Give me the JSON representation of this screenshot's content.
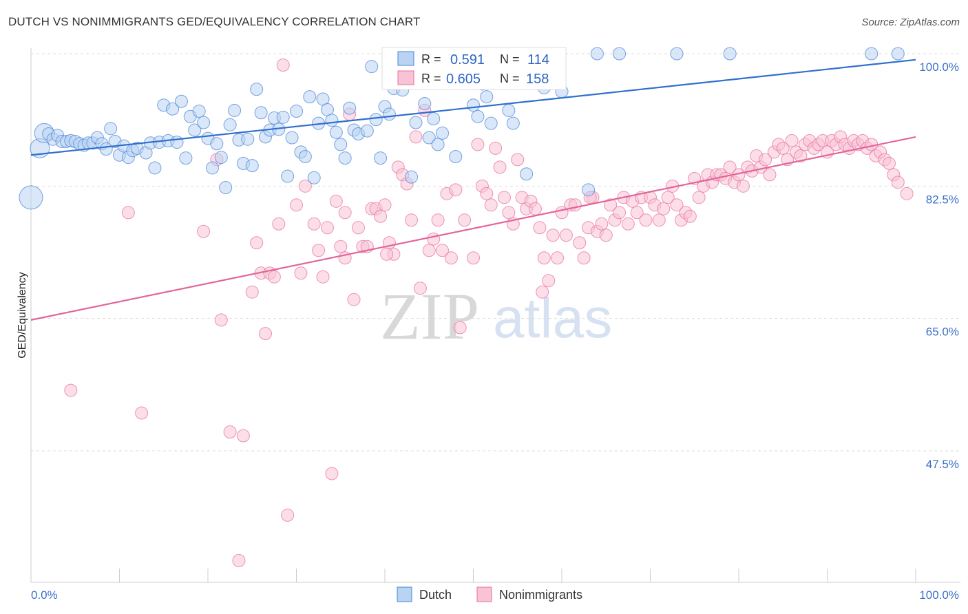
{
  "title": "DUTCH VS NONIMMIGRANTS GED/EQUIVALENCY CORRELATION CHART",
  "source": "Source: ZipAtlas.com",
  "watermark": {
    "part1": "ZIP",
    "part2": "atlas"
  },
  "colors": {
    "dutch": "#4a86d8",
    "dutch_fill": "#b9d3f3",
    "nonimmigrants": "#e8729b",
    "nonimmigrants_fill": "#f7c3d5",
    "tick_label": "#3a6fc9",
    "grid": "#dddddd"
  },
  "stats": {
    "dutch": {
      "r_label": "R =",
      "r": "0.591",
      "n_label": "N =",
      "n": "114"
    },
    "nonimmigrants": {
      "r_label": "R =",
      "r": "0.605",
      "n_label": "N =",
      "n": "158"
    }
  },
  "chart_data": {
    "type": "scatter",
    "title": "DUTCH VS NONIMMIGRANTS GED/EQUIVALENCY CORRELATION CHART",
    "xlabel": "",
    "ylabel": "GED/Equivalency",
    "xlim": [
      0,
      100
    ],
    "ylim": [
      30,
      102
    ],
    "x_tick_labels": [
      "0.0%",
      "100.0%"
    ],
    "y_ticks": [
      47.5,
      65.0,
      82.5,
      100.0
    ],
    "y_tick_labels": [
      "47.5%",
      "65.0%",
      "82.5%",
      "100.0%"
    ],
    "grid": "horizontal dashed",
    "legend_position": "bottom",
    "series": [
      {
        "name": "Dutch",
        "color": "#4a86d8",
        "trend": {
          "x": [
            0,
            100
          ],
          "y": [
            86.6,
            99.2
          ]
        },
        "points": [
          [
            0,
            81
          ],
          [
            1,
            87.5
          ],
          [
            1.5,
            89.5
          ],
          [
            2,
            89.4
          ],
          [
            2.5,
            88.7
          ],
          [
            3,
            89.2
          ],
          [
            3.5,
            88.4
          ],
          [
            4,
            88.4
          ],
          [
            4.5,
            88.5
          ],
          [
            5,
            88.4
          ],
          [
            5.5,
            88.1
          ],
          [
            6,
            87.9
          ],
          [
            6.5,
            88.2
          ],
          [
            7,
            88.2
          ],
          [
            7.5,
            88.9
          ],
          [
            8,
            88.1
          ],
          [
            8.5,
            87.4
          ],
          [
            9,
            90.1
          ],
          [
            9.5,
            88.4
          ],
          [
            10,
            86.6
          ],
          [
            10.5,
            87.8
          ],
          [
            11,
            86.3
          ],
          [
            11.5,
            87.2
          ],
          [
            12,
            87.5
          ],
          [
            13,
            86.9
          ],
          [
            13.5,
            88.2
          ],
          [
            14,
            84.9
          ],
          [
            14.5,
            88.3
          ],
          [
            15,
            93.2
          ],
          [
            15.5,
            88.5
          ],
          [
            16,
            92.7
          ],
          [
            16.5,
            88.3
          ],
          [
            17,
            93.7
          ],
          [
            17.5,
            86.2
          ],
          [
            18,
            91.7
          ],
          [
            18.5,
            89.9
          ],
          [
            19,
            92.4
          ],
          [
            19.5,
            90.9
          ],
          [
            20,
            88.8
          ],
          [
            20.5,
            84.9
          ],
          [
            21,
            88.1
          ],
          [
            21.5,
            86.3
          ],
          [
            22,
            82.3
          ],
          [
            22.5,
            90.6
          ],
          [
            23,
            92.5
          ],
          [
            23.5,
            88.6
          ],
          [
            24,
            85.5
          ],
          [
            24.5,
            88.7
          ],
          [
            25,
            85.2
          ],
          [
            25.5,
            95.3
          ],
          [
            26,
            92.2
          ],
          [
            26.5,
            89.0
          ],
          [
            27,
            89.9
          ],
          [
            27.5,
            91.5
          ],
          [
            28,
            90.0
          ],
          [
            28.5,
            91.6
          ],
          [
            29,
            83.8
          ],
          [
            29.5,
            88.9
          ],
          [
            30,
            92.4
          ],
          [
            30.5,
            87.0
          ],
          [
            31,
            86.4
          ],
          [
            31.5,
            94.3
          ],
          [
            32,
            83.6
          ],
          [
            32.5,
            90.8
          ],
          [
            33,
            94.0
          ],
          [
            33.5,
            92.6
          ],
          [
            34,
            91.2
          ],
          [
            34.5,
            89.6
          ],
          [
            35,
            88.0
          ],
          [
            35.5,
            86.2
          ],
          [
            36,
            92.8
          ],
          [
            36.5,
            89.9
          ],
          [
            37,
            89.4
          ],
          [
            38,
            89.8
          ],
          [
            38.5,
            98.3
          ],
          [
            39,
            91.3
          ],
          [
            39.5,
            86.2
          ],
          [
            40,
            93.0
          ],
          [
            40.5,
            92.0
          ],
          [
            41,
            95.4
          ],
          [
            42,
            95.2
          ],
          [
            43,
            83.7
          ],
          [
            43.5,
            90.9
          ],
          [
            44,
            97.5
          ],
          [
            44.5,
            93.4
          ],
          [
            45,
            88.9
          ],
          [
            45.5,
            91.4
          ],
          [
            46,
            88.0
          ],
          [
            46.5,
            89.5
          ],
          [
            47,
            97.5
          ],
          [
            48,
            86.4
          ],
          [
            49,
            96.3
          ],
          [
            50,
            93.2
          ],
          [
            50.5,
            91.7
          ],
          [
            51,
            96.0
          ],
          [
            51.5,
            94.3
          ],
          [
            52,
            90.8
          ],
          [
            53,
            97.5
          ],
          [
            54,
            92.5
          ],
          [
            54.5,
            90.8
          ],
          [
            55,
            97.8
          ],
          [
            56,
            84.1
          ],
          [
            58,
            95.5
          ],
          [
            60,
            95.0
          ],
          [
            63,
            82.0
          ],
          [
            64,
            100.0
          ],
          [
            66.5,
            100.0
          ],
          [
            73,
            100.0
          ],
          [
            79,
            100.0
          ],
          [
            95,
            100.0
          ],
          [
            98,
            100.0
          ]
        ]
      },
      {
        "name": "Nonimmigrants",
        "color": "#e8729b",
        "trend": {
          "x": [
            0,
            100
          ],
          "y": [
            64.8,
            89.0
          ]
        },
        "points": [
          [
            4.5,
            55.5
          ],
          [
            11,
            79.0
          ],
          [
            12.5,
            52.5
          ],
          [
            19.5,
            76.5
          ],
          [
            21,
            86.0
          ],
          [
            21.5,
            64.8
          ],
          [
            22.5,
            50.0
          ],
          [
            23.5,
            33.0
          ],
          [
            24,
            49.5
          ],
          [
            25,
            68.5
          ],
          [
            25.5,
            75.0
          ],
          [
            26,
            71.0
          ],
          [
            26.5,
            63.0
          ],
          [
            27,
            71.0
          ],
          [
            27.5,
            70.5
          ],
          [
            28,
            77.5
          ],
          [
            28.5,
            98.5
          ],
          [
            29,
            39.0
          ],
          [
            30,
            80.0
          ],
          [
            30.5,
            71.0
          ],
          [
            31,
            82.5
          ],
          [
            32,
            77.5
          ],
          [
            32.5,
            74.0
          ],
          [
            33,
            70.5
          ],
          [
            33.5,
            77.0
          ],
          [
            34,
            44.5
          ],
          [
            34.5,
            80.5
          ],
          [
            35,
            74.5
          ],
          [
            35.5,
            73.0
          ],
          [
            36,
            92.0
          ],
          [
            36.5,
            67.5
          ],
          [
            37,
            77.0
          ],
          [
            37.5,
            74.5
          ],
          [
            38,
            74.5
          ],
          [
            38.5,
            79.5
          ],
          [
            39,
            79.5
          ],
          [
            39.5,
            78.5
          ],
          [
            40,
            80.0
          ],
          [
            40.5,
            75.0
          ],
          [
            41,
            73.5
          ],
          [
            41.5,
            85.0
          ],
          [
            42,
            84.0
          ],
          [
            42.5,
            82.8
          ],
          [
            43,
            78.0
          ],
          [
            43.5,
            89.0
          ],
          [
            44,
            69.0
          ],
          [
            44.5,
            92.5
          ],
          [
            45,
            74.0
          ],
          [
            45.5,
            75.5
          ],
          [
            46,
            78.0
          ],
          [
            46.5,
            74.0
          ],
          [
            47,
            81.5
          ],
          [
            47.5,
            73.0
          ],
          [
            48,
            82.0
          ],
          [
            48.5,
            63.8
          ],
          [
            49,
            78.0
          ],
          [
            50,
            73.0
          ],
          [
            50.5,
            88.0
          ],
          [
            51,
            82.5
          ],
          [
            51.5,
            81.5
          ],
          [
            52,
            80.0
          ],
          [
            52.5,
            87.5
          ],
          [
            53,
            85.0
          ],
          [
            53.5,
            81.0
          ],
          [
            54,
            79.0
          ],
          [
            54.5,
            77.5
          ],
          [
            55,
            86.0
          ],
          [
            55.5,
            81.0
          ],
          [
            56,
            79.5
          ],
          [
            56.5,
            80.5
          ],
          [
            57,
            79.5
          ],
          [
            57.5,
            77.0
          ],
          [
            58,
            73.0
          ],
          [
            58.5,
            70.0
          ],
          [
            59,
            76.0
          ],
          [
            59.5,
            73.0
          ],
          [
            60,
            79.0
          ],
          [
            60.5,
            76.0
          ],
          [
            61,
            80.0
          ],
          [
            61.5,
            80.0
          ],
          [
            62,
            75.0
          ],
          [
            62.5,
            73.0
          ],
          [
            63,
            77.0
          ],
          [
            63.5,
            81.0
          ],
          [
            64,
            76.5
          ],
          [
            64.5,
            77.5
          ],
          [
            65,
            76.0
          ],
          [
            65.5,
            80.0
          ],
          [
            66,
            78.0
          ],
          [
            66.5,
            79.0
          ],
          [
            67,
            81.0
          ],
          [
            67.5,
            77.5
          ],
          [
            68,
            80.5
          ],
          [
            68.5,
            79.0
          ],
          [
            69,
            81.0
          ],
          [
            69.5,
            78.0
          ],
          [
            70,
            81.0
          ],
          [
            70.5,
            80.0
          ],
          [
            71,
            78.0
          ],
          [
            71.5,
            79.5
          ],
          [
            72,
            81.0
          ],
          [
            72.5,
            82.5
          ],
          [
            73,
            80.0
          ],
          [
            73.5,
            78.0
          ],
          [
            74,
            79.0
          ],
          [
            74.5,
            78.5
          ],
          [
            75,
            83.5
          ],
          [
            75.5,
            81.0
          ],
          [
            76,
            82.5
          ],
          [
            76.5,
            84.0
          ],
          [
            77,
            83.0
          ],
          [
            77.5,
            84.0
          ],
          [
            78,
            84.0
          ],
          [
            78.5,
            83.5
          ],
          [
            79,
            85.0
          ],
          [
            79.5,
            83.0
          ],
          [
            80,
            84.0
          ],
          [
            80.5,
            82.5
          ],
          [
            81,
            85.0
          ],
          [
            81.5,
            84.5
          ],
          [
            82,
            86.5
          ],
          [
            82.5,
            85.0
          ],
          [
            83,
            86.0
          ],
          [
            83.5,
            84.0
          ],
          [
            84,
            87.0
          ],
          [
            84.5,
            88.0
          ],
          [
            85,
            87.5
          ],
          [
            85.5,
            86.0
          ],
          [
            86,
            88.5
          ],
          [
            86.5,
            87.0
          ],
          [
            87,
            86.5
          ],
          [
            87.5,
            88.0
          ],
          [
            88,
            88.5
          ],
          [
            88.5,
            87.5
          ],
          [
            89,
            88.0
          ],
          [
            89.5,
            88.5
          ],
          [
            90,
            87.0
          ],
          [
            90.5,
            88.5
          ],
          [
            91,
            88.0
          ],
          [
            91.5,
            89.0
          ],
          [
            92,
            88.0
          ],
          [
            92.5,
            87.5
          ],
          [
            93,
            88.5
          ],
          [
            93.5,
            88.0
          ],
          [
            94,
            88.5
          ],
          [
            94.5,
            87.5
          ],
          [
            95,
            88.0
          ],
          [
            95.5,
            86.5
          ],
          [
            96,
            87.0
          ],
          [
            96.5,
            86.0
          ],
          [
            97,
            85.5
          ],
          [
            97.5,
            84.0
          ],
          [
            98,
            83.0
          ],
          [
            99,
            81.5
          ],
          [
            35.5,
            79.0
          ],
          [
            40.2,
            73.5
          ],
          [
            57.8,
            68.5
          ],
          [
            63.2,
            81.0
          ]
        ]
      }
    ]
  },
  "legend": {
    "items": [
      {
        "label": "Dutch"
      },
      {
        "label": "Nonimmigrants"
      }
    ]
  }
}
